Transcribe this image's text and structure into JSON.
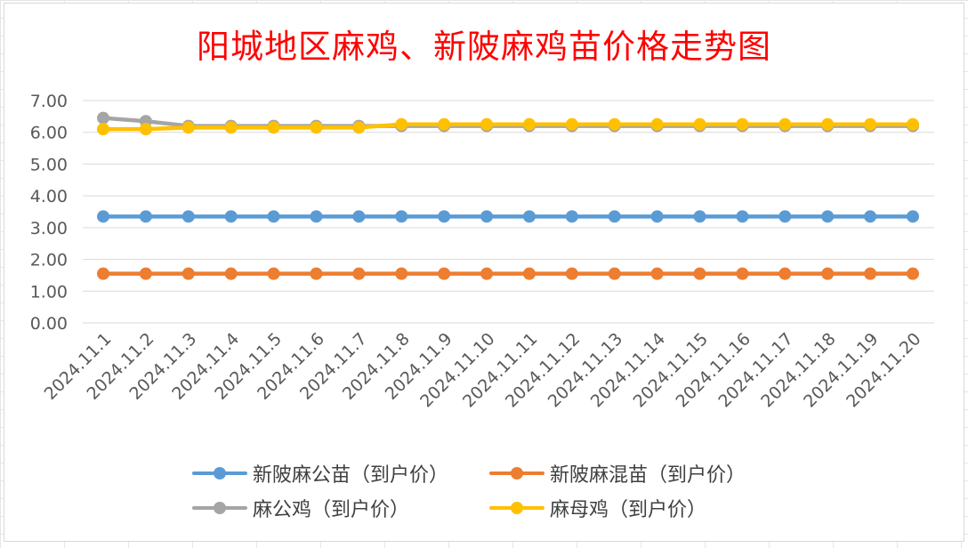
{
  "chart_data": {
    "type": "line",
    "title": "阳城地区麻鸡、新陂麻鸡苗价格走势图",
    "xlabel": "",
    "ylabel": "",
    "ylim": [
      0,
      7
    ],
    "y_ticks": [
      "0.00",
      "1.00",
      "2.00",
      "3.00",
      "4.00",
      "5.00",
      "6.00",
      "7.00"
    ],
    "grid": true,
    "legend_position": "bottom",
    "categories": [
      "2024.11.1",
      "2024.11.2",
      "2024.11.3",
      "2024.11.4",
      "2024.11.5",
      "2024.11.6",
      "2024.11.7",
      "2024.11.8",
      "2024.11.9",
      "2024.11.10",
      "2024.11.11",
      "2024.11.12",
      "2024.11.13",
      "2024.11.14",
      "2024.11.15",
      "2024.11.16",
      "2024.11.17",
      "2024.11.18",
      "2024.11.19",
      "2024.11.20"
    ],
    "series": [
      {
        "name": "新陂麻公苗（到户价）",
        "color": "#5b9bd5",
        "values": [
          3.35,
          3.35,
          3.35,
          3.35,
          3.35,
          3.35,
          3.35,
          3.35,
          3.35,
          3.35,
          3.35,
          3.35,
          3.35,
          3.35,
          3.35,
          3.35,
          3.35,
          3.35,
          3.35,
          3.35
        ]
      },
      {
        "name": "新陂麻混苗（到户价）",
        "color": "#ed7d31",
        "values": [
          1.55,
          1.55,
          1.55,
          1.55,
          1.55,
          1.55,
          1.55,
          1.55,
          1.55,
          1.55,
          1.55,
          1.55,
          1.55,
          1.55,
          1.55,
          1.55,
          1.55,
          1.55,
          1.55,
          1.55
        ]
      },
      {
        "name": "麻公鸡（到户价）",
        "color": "#a5a5a5",
        "values": [
          6.45,
          6.35,
          6.2,
          6.2,
          6.2,
          6.2,
          6.2,
          6.2,
          6.2,
          6.2,
          6.2,
          6.2,
          6.2,
          6.2,
          6.2,
          6.2,
          6.2,
          6.2,
          6.2,
          6.2
        ]
      },
      {
        "name": "麻母鸡（到户价）",
        "color": "#ffc000",
        "values": [
          6.1,
          6.1,
          6.15,
          6.15,
          6.15,
          6.15,
          6.15,
          6.25,
          6.25,
          6.25,
          6.25,
          6.25,
          6.25,
          6.25,
          6.25,
          6.25,
          6.25,
          6.25,
          6.25,
          6.25
        ]
      }
    ]
  }
}
